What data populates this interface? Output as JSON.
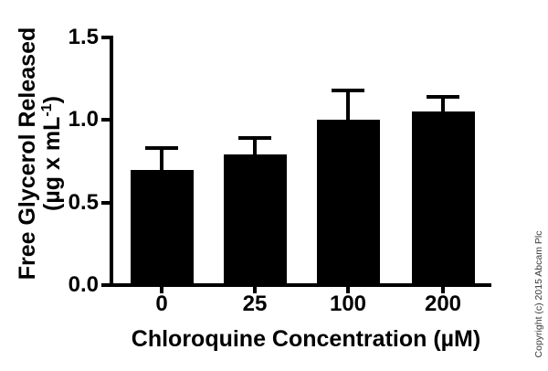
{
  "chart_data": {
    "type": "bar",
    "title": "",
    "categories": [
      "0",
      "25",
      "100",
      "200"
    ],
    "values": [
      0.7,
      0.79,
      1.0,
      1.05
    ],
    "errors_upper": [
      0.13,
      0.1,
      0.18,
      0.09
    ],
    "error_bar_style": "upper-only-with-caps",
    "xlabel": "Chloroquine Concentration (µM)",
    "ylabel": "Free Glycerol Released (µg x mL⁻¹)",
    "ylabel_line1": "Free Glycerol Released",
    "ylabel_unit_prefix": "(µg x mL",
    "ylabel_unit_sup": "-1",
    "ylabel_unit_suffix": ")",
    "yticks": [
      {
        "label": "0.0",
        "value": 0.0
      },
      {
        "label": "0.5",
        "value": 0.5
      },
      {
        "label": "1.0",
        "value": 1.0
      },
      {
        "label": "1.5",
        "value": 1.5
      }
    ],
    "ylim": [
      0.0,
      1.5
    ],
    "grid": false,
    "legend": false,
    "bar_color": "#000000",
    "axis_color": "#000000",
    "background_color": "#ffffff"
  },
  "copyright": "Copyright (c) 2015 Abcam Plc",
  "colors": {
    "copyright_text": "#3a3a3a"
  }
}
